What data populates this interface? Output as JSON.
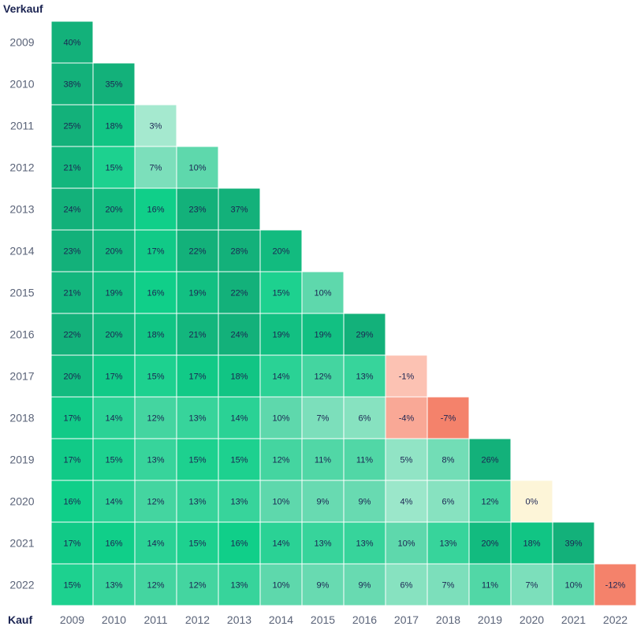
{
  "chart_data": {
    "type": "heatmap",
    "row_axis_label": "Verkauf",
    "col_axis_label": "Kauf",
    "rows": [
      "2009",
      "2010",
      "2011",
      "2012",
      "2013",
      "2014",
      "2015",
      "2016",
      "2017",
      "2018",
      "2019",
      "2020",
      "2021",
      "2022"
    ],
    "cols": [
      "2009",
      "2010",
      "2011",
      "2012",
      "2013",
      "2014",
      "2015",
      "2016",
      "2017",
      "2018",
      "2019",
      "2020",
      "2021",
      "2022"
    ],
    "values": [
      [
        40
      ],
      [
        38,
        35
      ],
      [
        25,
        18,
        3
      ],
      [
        21,
        15,
        7,
        10
      ],
      [
        24,
        20,
        16,
        23,
        37
      ],
      [
        23,
        20,
        17,
        22,
        28,
        20
      ],
      [
        21,
        19,
        16,
        19,
        22,
        15,
        10
      ],
      [
        22,
        20,
        18,
        21,
        24,
        19,
        19,
        29
      ],
      [
        20,
        17,
        15,
        17,
        18,
        14,
        12,
        13,
        -1
      ],
      [
        17,
        14,
        12,
        13,
        14,
        10,
        7,
        6,
        -4,
        -7
      ],
      [
        17,
        15,
        13,
        15,
        15,
        12,
        11,
        11,
        5,
        8,
        26
      ],
      [
        16,
        14,
        12,
        13,
        13,
        10,
        9,
        9,
        4,
        6,
        12,
        0
      ],
      [
        17,
        16,
        14,
        15,
        16,
        14,
        13,
        13,
        10,
        13,
        20,
        18,
        39
      ],
      [
        15,
        13,
        12,
        12,
        13,
        10,
        9,
        9,
        6,
        7,
        11,
        7,
        10,
        -12
      ]
    ],
    "value_suffix": "%",
    "color_scale": {
      "negative_strong": "#f4826b",
      "negative_light": "#fcc2b3",
      "zero": "#fdf5d8",
      "positive_light": "#a5e9cf",
      "positive_mid": "#5ed8ac",
      "positive_strong": "#10cf89",
      "positive_dark": "#13b17a"
    }
  }
}
